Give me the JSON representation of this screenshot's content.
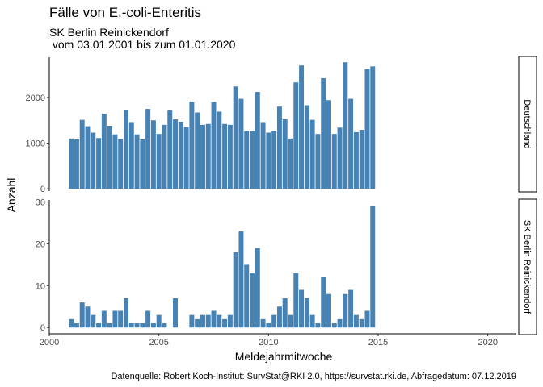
{
  "chart_data": {
    "type": "bar",
    "title": "Fälle von E.-coli-Enteritis",
    "subtitle_lines": [
      "SK Berlin Reinickendorf",
      " vom 03.01.2001 bis zum 01.01.2020"
    ],
    "xlabel": "Meldejahrmitwoche",
    "ylabel": "Anzahl",
    "caption": "Datenquelle: Robert Koch-Institut: SurvStat@RKI 2.0, https://survstat.rki.de, Abfragedatum: 07.12.2019",
    "bar_color": "#4682b4",
    "xlim": [
      2000,
      2021.3
    ],
    "x_ticks": [
      2000,
      2005,
      2010,
      2015,
      2020
    ],
    "x_tick_labels": [
      "2000",
      "2005",
      "2010",
      "2015",
      "2020"
    ],
    "bar_width": 0.22,
    "x": [
      2001.0,
      2001.25,
      2001.5,
      2001.75,
      2002.0,
      2002.25,
      2002.5,
      2002.75,
      2003.0,
      2003.25,
      2003.5,
      2003.75,
      2004.0,
      2004.25,
      2004.5,
      2004.75,
      2005.0,
      2005.25,
      2005.5,
      2005.75,
      2006.0,
      2006.25,
      2006.5,
      2006.75,
      2007.0,
      2007.25,
      2007.5,
      2007.75,
      2008.0,
      2008.25,
      2008.5,
      2008.75,
      2009.0,
      2009.25,
      2009.5,
      2009.75,
      2010.0,
      2010.25,
      2010.5,
      2010.75,
      2011.0,
      2011.25,
      2011.5,
      2011.75,
      2012.0,
      2012.25,
      2012.5,
      2012.75,
      2013.0,
      2013.25,
      2013.5,
      2013.75,
      2014.0,
      2014.25,
      2014.5,
      2014.75
    ],
    "panels": [
      {
        "strip_label": "Deutschland",
        "ylim": [
          -50,
          2880
        ],
        "y_ticks": [
          0,
          1000,
          2000
        ],
        "y_tick_labels": [
          "0",
          "1000",
          "2000"
        ],
        "values": [
          1100,
          1080,
          1510,
          1370,
          1230,
          1110,
          1640,
          1380,
          1190,
          1090,
          1730,
          1460,
          1190,
          1080,
          1750,
          1500,
          1200,
          1400,
          1720,
          1520,
          1470,
          1350,
          1910,
          1670,
          1400,
          1420,
          1900,
          1690,
          1420,
          1400,
          2240,
          1970,
          1260,
          1270,
          2120,
          1460,
          1230,
          1270,
          1800,
          1520,
          1100,
          2330,
          2700,
          1830,
          1510,
          1200,
          2420,
          1940,
          1200,
          1340,
          2770,
          1970,
          1240,
          1290,
          2620,
          2680
        ]
      },
      {
        "strip_label": "SK Berlin Reinickendorf",
        "ylim": [
          -1.5,
          30.5
        ],
        "y_ticks": [
          0,
          10,
          20,
          30
        ],
        "y_tick_labels": [
          "0",
          "10",
          "20",
          "30"
        ],
        "values": [
          2,
          1,
          6,
          5,
          3,
          1,
          4,
          1,
          4,
          4,
          7,
          1,
          1,
          1,
          4,
          1,
          3,
          1,
          0,
          7,
          0,
          0,
          3,
          2,
          3,
          3,
          4,
          3,
          2,
          3,
          18,
          23,
          15,
          13,
          19,
          2,
          1,
          3,
          5,
          7,
          3,
          13,
          9,
          7,
          3,
          1,
          12,
          8,
          1,
          2,
          8,
          9,
          3,
          2,
          4,
          29
        ]
      }
    ]
  }
}
